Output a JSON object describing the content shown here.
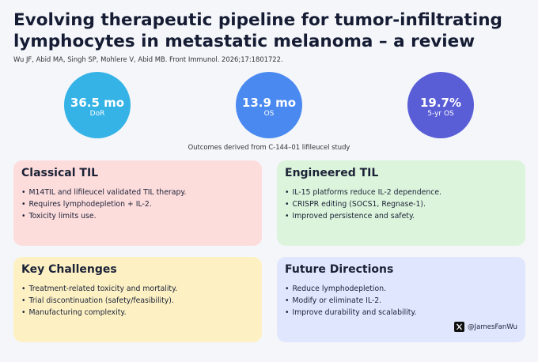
{
  "header": {
    "title": "Evolving therapeutic pipeline for tumor-infiltrating lymphocytes in metastatic melanoma – a review",
    "citation": "Wu JF, Abid MA, Singh SP, Mohlere V, Abid MB. Front Immunol. 2026;17:1801722."
  },
  "stats": [
    {
      "value": "36.5 mo",
      "label": "DoR"
    },
    {
      "value": "13.9 mo",
      "label": "OS"
    },
    {
      "value": "19.7%",
      "label": "5-yr OS"
    }
  ],
  "note": "Outcomes derived from C-144–01 lifileucel study",
  "cards": [
    {
      "title": "Classical TIL",
      "bullets": [
        "M14TIL and lifileucel validated TIL therapy.",
        "Requires lymphodepletion + IL-2.",
        "Toxicity limits use."
      ]
    },
    {
      "title": "Engineered TIL",
      "bullets": [
        "IL-15 platforms reduce IL-2 dependence.",
        "CRISPR editing (SOCS1, Regnase-1).",
        "Improved persistence and safety."
      ]
    },
    {
      "title": "Key Challenges",
      "bullets": [
        "Treatment-related toxicity and mortality.",
        "Trial discontinuation (safety/feasibility).",
        "Manufacturing complexity."
      ]
    },
    {
      "title": "Future Directions",
      "bullets": [
        "Reduce lymphodepletion.",
        "Modify or eliminate IL-2.",
        "Improve durability and scalability."
      ]
    }
  ],
  "footer": {
    "handle": "@JamesFanWu"
  }
}
